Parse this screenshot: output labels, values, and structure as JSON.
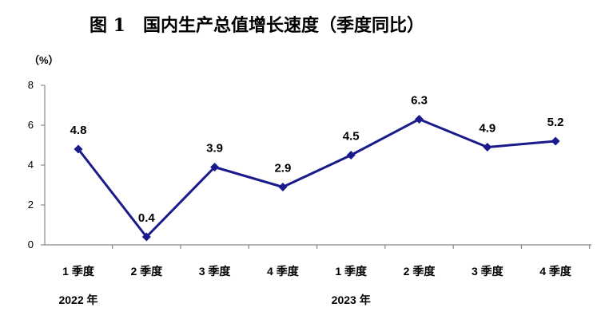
{
  "chart_data": {
    "type": "line",
    "title": "图 1　国内生产总值增长速度（季度同比）",
    "ylabel": "（%）",
    "ylim": [
      0,
      8
    ],
    "yticks": [
      "0",
      "2",
      "4",
      "6",
      "8"
    ],
    "categories": [
      "1 季度",
      "2 季度",
      "3 季度",
      "4 季度",
      "1 季度",
      "2 季度",
      "3 季度",
      "4 季度"
    ],
    "year_groups": [
      {
        "label": "2022 年",
        "start": 0,
        "count": 4
      },
      {
        "label": "2023 年",
        "start": 4,
        "count": 4
      }
    ],
    "series": [
      {
        "values": [
          4.8,
          0.4,
          3.9,
          2.9,
          4.5,
          6.3,
          4.9,
          5.2
        ],
        "labels": [
          "4.8",
          "0.4",
          "3.9",
          "2.9",
          "4.5",
          "6.3",
          "4.9",
          "5.2"
        ]
      }
    ],
    "grid": false,
    "line_color": "#1a1a8c"
  }
}
